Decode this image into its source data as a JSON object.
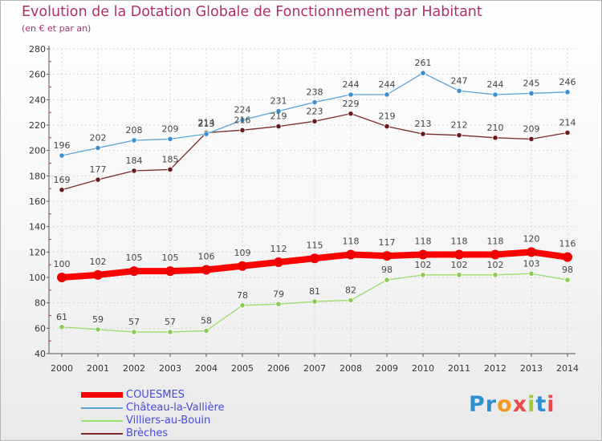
{
  "header": {
    "title": "Evolution de la Dotation Globale de Fonctionnement par Habitant",
    "subtitle": "(en € et par an)"
  },
  "brand": {
    "logo_text": "Proxiti",
    "colors": [
      "#2e8fd0",
      "#9ccb3b",
      "#f29a1f",
      "#e84b4b"
    ]
  },
  "chart_data": {
    "type": "line",
    "title": "Evolution de la Dotation Globale de Fonctionnement par Habitant",
    "subtitle": "(en € et par an)",
    "xlabel": "",
    "ylabel": "",
    "x": [
      "2000",
      "2001",
      "2002",
      "2003",
      "2004",
      "2005",
      "2006",
      "2007",
      "2008",
      "2009",
      "2010",
      "2011",
      "2012",
      "2013",
      "2014"
    ],
    "ylim": [
      40,
      280
    ],
    "yticks": [
      40,
      60,
      80,
      100,
      120,
      140,
      160,
      180,
      200,
      220,
      240,
      260,
      280
    ],
    "grid": true,
    "legend_position": "bottom-left",
    "series": [
      {
        "name": "COUESMES",
        "color": "#ff0000",
        "point_color": "#ee0000",
        "thick": true,
        "values": [
          100,
          102,
          105,
          105,
          106,
          109,
          112,
          115,
          118,
          117,
          118,
          118,
          118,
          120,
          116
        ]
      },
      {
        "name": "Château-la-Vallière",
        "color": "#5ba3d6",
        "point_color": "#3b8fd0",
        "thick": false,
        "values": [
          196,
          202,
          208,
          209,
          213,
          224,
          231,
          238,
          244,
          244,
          261,
          247,
          244,
          245,
          246
        ]
      },
      {
        "name": "Villiers-au-Bouin",
        "color": "#99dd6a",
        "point_color": "#88cc55",
        "thick": false,
        "values": [
          61,
          59,
          57,
          57,
          58,
          78,
          79,
          81,
          82,
          98,
          102,
          102,
          102,
          103,
          98
        ]
      },
      {
        "name": "Brèches",
        "color": "#7a2a2a",
        "point_color": "#6a1a1a",
        "thick": false,
        "values": [
          169,
          177,
          184,
          185,
          214,
          216,
          219,
          223,
          229,
          219,
          213,
          212,
          210,
          209,
          214
        ]
      }
    ]
  }
}
